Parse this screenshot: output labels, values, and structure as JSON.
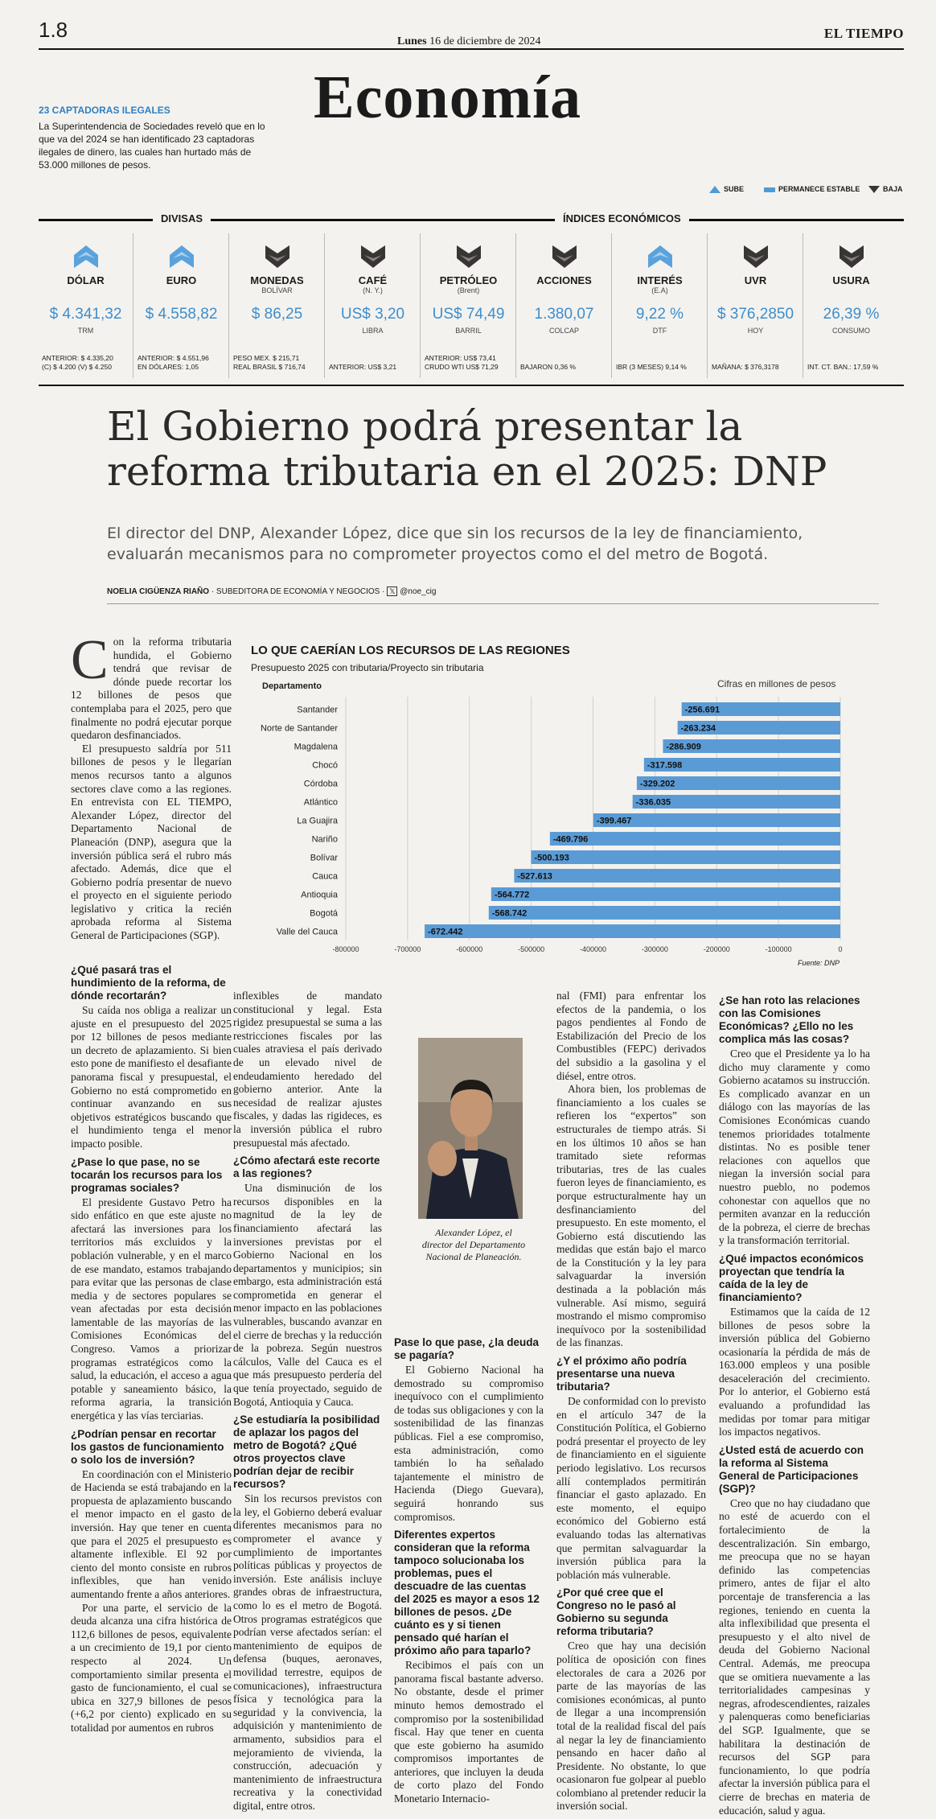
{
  "header": {
    "page_number": "1.8",
    "date_day": "Lunes",
    "date_rest": "16 de diciembre de 2024",
    "brand": "EL TIEMPO",
    "section": "Economía"
  },
  "sidebar": {
    "headline": "23 CAPTADORAS ILEGALES",
    "body": "La Superintendencia de Sociedades reveló que en lo que va del 2024 se han identificado 23 captadoras ilegales de dinero, las cuales han hurtado más de 53.000 millones de pesos."
  },
  "legend": {
    "up": "SUBE",
    "flat": "PERMANECE ESTABLE",
    "down": "BAJA"
  },
  "indicators": {
    "divisas_label": "DIVISAS",
    "indices_label": "ÍNDICES ECONÓMICOS",
    "items": [
      {
        "name": "DÓLAR",
        "sub": "",
        "value": "$ 4.341,32",
        "unit": "TRM",
        "trend": "up",
        "foot": "ANTERIOR: $ 4.335,20\n(C) $ 4.200 (V) $ 4.250"
      },
      {
        "name": "EURO",
        "sub": "",
        "value": "$ 4.558,82",
        "unit": "",
        "trend": "up",
        "foot": "ANTERIOR: $ 4.551,96\nEN DÓLARES: 1,05"
      },
      {
        "name": "MONEDAS",
        "sub": "BOLÍVAR",
        "value": "$ 86,25",
        "unit": "",
        "trend": "down",
        "foot": "PESO MEX. $ 215,71\nREAL BRASIL $ 716,74"
      },
      {
        "name": "CAFÉ",
        "sub": "(N. Y.)",
        "value": "US$ 3,20",
        "unit": "LIBRA",
        "trend": "down",
        "foot": "ANTERIOR: US$ 3,21"
      },
      {
        "name": "PETRÓLEO",
        "sub": "(Brent)",
        "value": "US$ 74,49",
        "unit": "BARRIL",
        "trend": "down",
        "foot": "ANTERIOR: US$ 73,41\nCRUDO WTI US$ 71,29"
      },
      {
        "name": "ACCIONES",
        "sub": "",
        "value": "1.380,07",
        "unit": "COLCAP",
        "trend": "down",
        "foot": "BAJARON 0,36 %"
      },
      {
        "name": "INTERÉS",
        "sub": "(E.A)",
        "value": "9,22 %",
        "unit": "DTF",
        "trend": "up",
        "foot": "IBR (3 MESES) 9,14 %"
      },
      {
        "name": "UVR",
        "sub": "",
        "value": "$ 376,2850",
        "unit": "HOY",
        "trend": "down",
        "foot": "MAÑANA: $ 376,3178"
      },
      {
        "name": "USURA",
        "sub": "",
        "value": "26,39 %",
        "unit": "CONSUMO",
        "trend": "down",
        "foot": "INT. CT. BAN.: 17,59 %"
      }
    ]
  },
  "article": {
    "headline": "El Gobierno podrá presentar la reforma tributaria en el 2025: DNP",
    "deck": "El director del DNP, Alexander López, dice que sin los recursos de la ley de financiamiento, evaluarán mecanismos para no comprometer proyectos como el del metro de Bogotá.",
    "byline_author": "NOELIA CIGÜENZA RIAÑO",
    "byline_role": "· SUBEDITORA DE ECONOMÍA Y NEGOCIOS ·",
    "byline_handle": "@noe_cig",
    "caption": "Alexander López, el director del Departamento Nacional de Planeación.",
    "col1_intro_dropcap": "C",
    "col1_intro": "on la reforma tributaria hundida, el Gobierno tendrá que revisar de dónde puede recortar los 12 billones de pesos que contemplaba para el 2025, pero que finalmente no podrá ejecutar porque quedaron desfinanciados.",
    "col1_p2": "El presupuesto saldría por 511 billones de pesos y le llegarían menos recursos tanto a algunos sectores clave como a las regiones. En entrevista con EL TIEMPO, Alexander López, director del Departamento Nacional de Planeación (DNP), asegura que la inversión pública será el rubro más afectado. Además, dice que el Gobierno podría presentar de nuevo el proyecto en el siguiente periodo legislativo y critica la recién aprobada reforma al Sistema General de Participaciones (SGP).",
    "q1": "¿Qué pasará tras el hundimiento de la reforma, de dónde recortarán?",
    "a1": "Su caída nos obliga a realizar un ajuste en el presupuesto del 2025 por 12 billones de pesos mediante un decreto de aplazamiento. Si bien esto pone de manifiesto el desafiante panorama fiscal y presupuestal, el Gobierno no está comprometido en continuar avanzando en sus objetivos estratégicos buscando que el hundimiento tenga el menor impacto posible.",
    "q2": "¿Pase lo que pase, no se tocarán los recursos para los programas sociales?",
    "a2": "El presidente Gustavo Petro ha sido enfático en que este ajuste no afectará las inversiones para los territorios más excluidos y la población vulnerable, y en el marco de ese mandato, estamos trabajando para evitar que las personas de clase media y de sectores populares se vean afectadas por esta decisión lamentable de las mayorías de las Comisiones Económicas del Congreso. Vamos a priorizar programas estratégicos como la salud, la educación, el acceso a agua potable y saneamiento básico, la reforma agraria, la transición energética y las vías terciarias.",
    "q3": "¿Podrían pensar en recortar los gastos de funcionamiento o solo los de inversión?",
    "a3": "En coordinación con el Ministerio de Hacienda se está trabajando en la propuesta de aplazamiento buscando el menor impacto en el gasto de inversión. Hay que tener en cuenta que para el 2025 el presupuesto es altamente inflexible. El 92 por ciento del monto consiste en rubros inflexibles, que han venido aumentando frente a años anteriores.",
    "a3b": "Por una parte, el servicio de la deuda alcanza una cifra histórica de 112,6 billones de pesos, equivalente a un crecimiento de 19,1 por ciento respecto al 2024. Un comportamiento similar presenta el gasto de funcionamiento, el cual se ubica en 327,9 billones de pesos (+6,2 por ciento) explicado en su totalidad por aumentos en rubros",
    "col2_p1": "inflexibles de mandato constitucional y legal. Esta rigidez presupuestal se suma a las restricciones fiscales por las cuales atraviesa el país derivado de un elevado nivel de endeudamiento heredado del gobierno anterior. Ante la necesidad de realizar ajustes fiscales, y dadas las rigideces, es la inversión pública el rubro presupuestal más afectado.",
    "q4": "¿Cómo afectará este recorte a las regiones?",
    "a4": "Una disminución de los recursos disponibles en la magnitud de la ley de financiamiento afectará las inversiones previstas por el Gobierno Nacional en los departamentos y municipios; sin embargo, esta administración está comprometida en generar el menor impacto en las poblaciones vulnerables, buscando avanzar en el cierre de brechas y la reducción de la pobreza. Según nuestros cálculos, Valle del Cauca es el que más presupuesto perdería del que tenía proyectado, seguido de Bogotá, Antioquia y Cauca.",
    "q5": "¿Se estudiaría la posibilidad de aplazar los pagos del metro de Bogotá? ¿Qué otros proyectos clave podrían dejar de recibir recursos?",
    "a5": "Sin los recursos previstos con la ley, el Gobierno deberá evaluar diferentes mecanismos para no comprometer el avance y cumplimiento de importantes políticas públicas y proyectos de inversión. Este análisis incluye grandes obras de infraestructura, como lo es el metro de Bogotá. Otros programas estratégicos que podrían verse afectados serían: el mantenimiento de equipos de defensa (buques, aeronaves, movilidad terrestre, equipos de comunicaciones), infraestructura física y tecnológica para la seguridad y la convivencia, la adquisición y mantenimiento de armamento, subsidios para el mejoramiento de vivienda, la construcción, adecuación y mantenimiento de infraestructura recreativa y la conectividad digital, entre otros.",
    "q6": "Pase lo que pase, ¿la deuda se pagaría?",
    "a6": "El Gobierno Nacional ha demostrado su compromiso inequívoco con el cumplimiento de todas sus obligaciones y con la sostenibilidad de las finanzas públicas. Fiel a ese compromiso, esta administración, como también lo ha señalado tajantemente el ministro de Hacienda (Diego Guevara), seguirá honrando sus compromisos.",
    "q7": "Diferentes expertos consideran que la reforma tampoco solucionaba los problemas, pues el descuadre de las cuentas del 2025 es mayor a esos 12 billones de pesos. ¿De cuánto es y si tienen pensado qué harían el próximo año para taparlo?",
    "a7": "Recibimos el país con un panorama fiscal bastante adverso. No obstante, desde el primer minuto hemos demostrado el compromiso por la sostenibilidad fiscal. Hay que tener en cuenta que este gobierno ha asumido compromisos importantes de anteriores, que incluyen la deuda de corto plazo del Fondo Monetario Internacio-",
    "col4_p1": "nal (FMI) para enfrentar los efectos de la pandemia, o los pagos pendientes al Fondo de Estabilización del Precio de los Combustibles (FEPC) derivados del subsidio a la gasolina y el diésel, entre otros.",
    "col4_p2": "Ahora bien, los problemas de financiamiento a los cuales se refieren los “expertos” son estructurales de tiempo atrás. Si en los últimos 10 años se han tramitado siete reformas tributarias, tres de las cuales fueron leyes de financiamiento, es porque estructuralmente hay un desfinanciamiento del presupuesto. En este momento, el Gobierno está discutiendo las medidas que están bajo el marco de la Constitución y la ley para salvaguardar la inversión destinada a la población más vulnerable. Así mismo, seguirá mostrando el mismo compromiso inequívoco por la sostenibilidad de las finanzas.",
    "q8": "¿Y el próximo año podría presentarse una nueva tributaria?",
    "a8": "De conformidad con lo previsto en el artículo 347 de la Constitución Política, el Gobierno podrá presentar el proyecto de ley de financiamiento en el siguiente periodo legislativo. Los recursos allí contemplados permitirán financiar el gasto aplazado. En este momento, el equipo económico del Gobierno está evaluando todas las alternativas que permitan salvaguardar la inversión pública para la población más vulnerable.",
    "q9": "¿Por qué cree que el Congreso no le pasó al Gobierno su segunda reforma tributaria?",
    "a9": "Creo que hay una decisión política de oposición con fines electorales de cara a 2026 por parte de las mayorías de las comisiones económicas, al punto de llegar a una incomprensión total de la realidad fiscal del país al negar la ley de financiamiento pensando en hacer daño al Presidente. No obstante, lo que ocasionaron fue golpear al pueblo colombiano al pretender reducir la inversión social.",
    "q10": "¿Se han roto las relaciones con las Comisiones Económicas? ¿Ello no les complica más las cosas?",
    "a10": "Creo que el Presidente ya lo ha dicho muy claramente y como Gobierno acatamos su instrucción. Es complicado avanzar en un diálogo con las mayorías de las Comisiones Económicas cuando tenemos prioridades totalmente distintas. No es posible tener relaciones con aquellos que niegan la inversión social para nuestro pueblo, no podemos cohonestar con aquellos que no permiten avanzar en la reducción de la pobreza, el cierre de brechas y la transformación territorial.",
    "q11": "¿Qué impactos económicos proyectan que tendría la caída de la ley de financiamiento?",
    "a11": "Estimamos que la caída de 12 billones de pesos sobre la inversión pública del Gobierno ocasionaría la pérdida de más de 163.000 empleos y una posible desaceleración del crecimiento. Por lo anterior, el Gobierno está evaluando a profundidad las medidas por tomar para mitigar los impactos negativos.",
    "q12": "¿Usted está de acuerdo con la reforma al Sistema General de Participaciones (SGP)?",
    "a12": "Creo que no hay ciudadano que no esté de acuerdo con el fortalecimiento de la descentralización. Sin embargo, me preocupa que no se hayan definido las competencias primero, antes de fijar el alto porcentaje de transferencia a las regiones, teniendo en cuenta la alta inflexibilidad que presenta el presupuesto y el alto nivel de deuda del Gobierno Nacional Central. Además, me preocupa que se omitiera nuevamente a las territorialidades campesinas y negras, afrodescendientes, raizales y palenqueras como beneficiarias del SGP. Igualmente, que se habilitara la destinación de recursos del SGP para funcionamiento, lo que podría afectar la inversión pública para el cierre de brechas en materia de educación, salud y agua."
  },
  "chart_data": {
    "type": "bar",
    "orientation": "horizontal",
    "title": "LO QUE CAERÍAN LOS RECURSOS DE LAS REGIONES",
    "subtitle": "Presupuesto 2025 con tributaria/Proyecto sin tributaria",
    "category_header": "Departamento",
    "unit_note": "Cifras en millones de pesos",
    "source": "Fuente: DNP",
    "categories": [
      "Santander",
      "Norte de Santander",
      "Magdalena",
      "Chocó",
      "Córdoba",
      "Atlántico",
      "La Guajira",
      "Nariño",
      "Bolívar",
      "Cauca",
      "Antioquia",
      "Bogotá",
      "Valle del Cauca"
    ],
    "values": [
      -256691,
      -263234,
      -286909,
      -317598,
      -329202,
      -336035,
      -399467,
      -469796,
      -500193,
      -527613,
      -564772,
      -568742,
      -672442
    ],
    "value_labels": [
      "-256.691",
      "-263.234",
      "-286.909",
      "-317.598",
      "-329.202",
      "-336.035",
      "-399.467",
      "-469.796",
      "-500.193",
      "-527.613",
      "-564.772",
      "-568.742",
      "-672.442"
    ],
    "xlim": [
      -800000,
      0
    ],
    "x_ticks": [
      -800000,
      -700000,
      -600000,
      -500000,
      -400000,
      -300000,
      -200000,
      -100000,
      0
    ],
    "x_tick_labels": [
      "-800000",
      "-700000",
      "-600000",
      "-500000",
      "-400000",
      "-300000",
      "-200000",
      "-100000",
      "0"
    ],
    "grid": true,
    "bar_color": "#5b9bd5"
  }
}
